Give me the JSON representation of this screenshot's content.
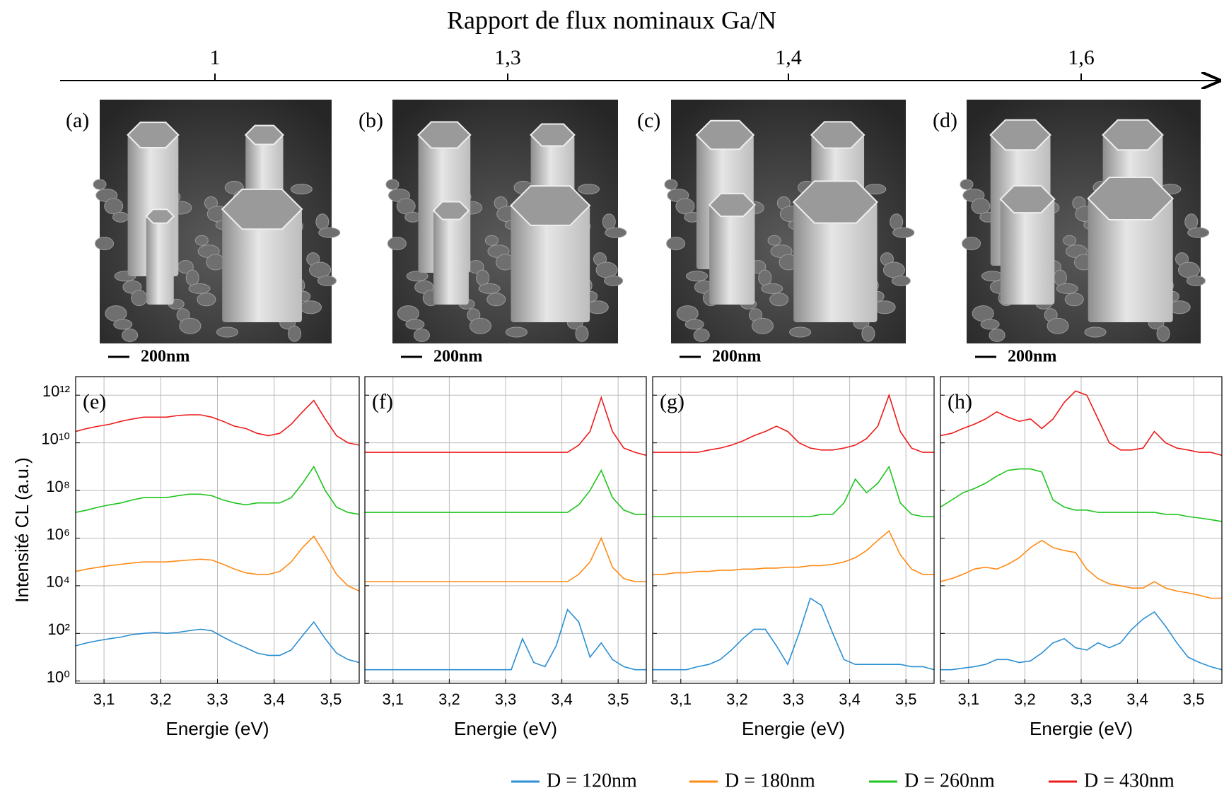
{
  "ratio_axis": {
    "title": "Rapport de flux nominaux Ga/N",
    "categories": [
      "1",
      "1,3",
      "1,4",
      "1,6"
    ]
  },
  "images": [
    {
      "label": "(a)",
      "scale_bar": "200nm"
    },
    {
      "label": "(b)",
      "scale_bar": "200nm"
    },
    {
      "label": "(c)",
      "scale_bar": "200nm"
    },
    {
      "label": "(d)",
      "scale_bar": "200nm"
    }
  ],
  "legend": [
    {
      "name": "D = 120nm",
      "color": "#2b8fd3"
    },
    {
      "name": "D = 180nm",
      "color": "#ff8a16"
    },
    {
      "name": "D = 260nm",
      "color": "#1fc41f"
    },
    {
      "name": "D = 430nm",
      "color": "#ee1b1b"
    }
  ],
  "chart_data": [
    {
      "type": "line",
      "label": "(e)",
      "xlabel": "Energie (eV)",
      "ylabel": "Intensité CL (a.u.)",
      "yscale": "log",
      "grid": true,
      "xlim": [
        3.05,
        3.55
      ],
      "xticks": [
        {
          "value": 3.1,
          "label": "3,1"
        },
        {
          "value": 3.2,
          "label": "3,2"
        },
        {
          "value": 3.3,
          "label": "3,3"
        },
        {
          "value": 3.4,
          "label": "3,4"
        },
        {
          "value": 3.5,
          "label": "3,5"
        }
      ],
      "ylim": [
        0.8,
        6000000000000.0
      ],
      "yticks": [
        {
          "value": 1,
          "label": "10⁰"
        },
        {
          "value": 100,
          "label": "10²"
        },
        {
          "value": 10000,
          "label": "10⁴"
        },
        {
          "value": 1000000,
          "label": "10⁶"
        },
        {
          "value": 100000000,
          "label": "10⁸"
        },
        {
          "value": 10000000000,
          "label": "10¹⁰"
        },
        {
          "value": 1000000000000,
          "label": "10¹²"
        }
      ],
      "x": [
        3.05,
        3.07,
        3.09,
        3.11,
        3.13,
        3.15,
        3.17,
        3.19,
        3.21,
        3.23,
        3.25,
        3.27,
        3.29,
        3.31,
        3.33,
        3.35,
        3.37,
        3.39,
        3.41,
        3.43,
        3.45,
        3.47,
        3.49,
        3.51,
        3.53,
        3.55
      ],
      "series": [
        {
          "color": "#2b8fd3",
          "values": [
            30,
            40,
            50,
            60,
            70,
            90,
            100,
            110,
            100,
            110,
            130,
            150,
            130,
            70,
            40,
            25,
            15,
            12,
            12,
            20,
            80,
            300,
            60,
            15,
            8,
            6
          ]
        },
        {
          "color": "#ff8a16",
          "values": [
            40000.0,
            50000.0,
            60000.0,
            70000.0,
            80000.0,
            90000.0,
            100000.0,
            100000.0,
            100000.0,
            110000.0,
            120000.0,
            130000.0,
            120000.0,
            80000.0,
            50000.0,
            35000.0,
            30000.0,
            30000.0,
            40000.0,
            100000.0,
            400000.0,
            1200000.0,
            200000.0,
            30000.0,
            10000.0,
            6000.0
          ]
        },
        {
          "color": "#1fc41f",
          "values": [
            12000000.0,
            15000000.0,
            20000000.0,
            25000000.0,
            30000000.0,
            40000000.0,
            50000000.0,
            50000000.0,
            50000000.0,
            60000000.0,
            70000000.0,
            70000000.0,
            60000000.0,
            40000000.0,
            30000000.0,
            25000000.0,
            30000000.0,
            30000000.0,
            30000000.0,
            50000000.0,
            200000000.0,
            1000000000.0,
            100000000.0,
            20000000.0,
            12000000.0,
            10000000.0
          ]
        },
        {
          "color": "#ee1b1b",
          "values": [
            30000000000.0,
            40000000000.0,
            50000000000.0,
            60000000000.0,
            80000000000.0,
            100000000000.0,
            120000000000.0,
            120000000000.0,
            120000000000.0,
            140000000000.0,
            150000000000.0,
            150000000000.0,
            120000000000.0,
            80000000000.0,
            50000000000.0,
            40000000000.0,
            25000000000.0,
            20000000000.0,
            25000000000.0,
            60000000000.0,
            200000000000.0,
            600000000000.0,
            100000000000.0,
            20000000000.0,
            10000000000.0,
            8000000000.0
          ]
        }
      ]
    },
    {
      "type": "line",
      "label": "(f)",
      "xlabel": "Energie (eV)",
      "yscale": "log",
      "grid": true,
      "xlim": [
        3.05,
        3.55
      ],
      "xticks": [
        {
          "value": 3.1,
          "label": "3,1"
        },
        {
          "value": 3.2,
          "label": "3,2"
        },
        {
          "value": 3.3,
          "label": "3,3"
        },
        {
          "value": 3.4,
          "label": "3,4"
        },
        {
          "value": 3.5,
          "label": "3,5"
        }
      ],
      "ylim": [
        0.8,
        6000000000000.0
      ],
      "yticks": [
        1,
        100,
        10000,
        1000000,
        100000000,
        10000000000,
        1000000000000
      ],
      "x": [
        3.05,
        3.07,
        3.09,
        3.11,
        3.13,
        3.15,
        3.17,
        3.19,
        3.21,
        3.23,
        3.25,
        3.27,
        3.29,
        3.31,
        3.33,
        3.35,
        3.37,
        3.39,
        3.41,
        3.43,
        3.45,
        3.47,
        3.49,
        3.51,
        3.53,
        3.55
      ],
      "series": [
        {
          "color": "#2b8fd3",
          "values": [
            3,
            3,
            3,
            3,
            3,
            3,
            3,
            3,
            3,
            3,
            3,
            3,
            3,
            3,
            60,
            6,
            4,
            30,
            1000,
            300,
            10,
            40,
            8,
            4,
            3,
            3
          ]
        },
        {
          "color": "#ff8a16",
          "values": [
            15000.0,
            15000.0,
            15000.0,
            15000.0,
            15000.0,
            15000.0,
            15000.0,
            15000.0,
            15000.0,
            15000.0,
            15000.0,
            15000.0,
            15000.0,
            15000.0,
            15000.0,
            15000.0,
            15000.0,
            15000.0,
            15000.0,
            30000.0,
            100000.0,
            1000000.0,
            60000.0,
            20000.0,
            15000.0,
            15000.0
          ]
        },
        {
          "color": "#1fc41f",
          "values": [
            12000000.0,
            12000000.0,
            12000000.0,
            12000000.0,
            12000000.0,
            12000000.0,
            12000000.0,
            12000000.0,
            12000000.0,
            12000000.0,
            12000000.0,
            12000000.0,
            12000000.0,
            12000000.0,
            12000000.0,
            12000000.0,
            12000000.0,
            12000000.0,
            12000000.0,
            25000000.0,
            100000000.0,
            700000000.0,
            50000000.0,
            15000000.0,
            10000000.0,
            10000000.0
          ]
        },
        {
          "color": "#ee1b1b",
          "values": [
            4000000000.0,
            4000000000.0,
            4000000000.0,
            4000000000.0,
            4000000000.0,
            4000000000.0,
            4000000000.0,
            4000000000.0,
            4000000000.0,
            4000000000.0,
            4000000000.0,
            4000000000.0,
            4000000000.0,
            4000000000.0,
            4000000000.0,
            4000000000.0,
            4000000000.0,
            4000000000.0,
            4000000000.0,
            8000000000.0,
            30000000000.0,
            800000000000.0,
            30000000000.0,
            6000000000.0,
            4000000000.0,
            3000000000.0
          ]
        }
      ]
    },
    {
      "type": "line",
      "label": "(g)",
      "xlabel": "Energie (eV)",
      "yscale": "log",
      "grid": true,
      "xlim": [
        3.05,
        3.55
      ],
      "xticks": [
        {
          "value": 3.1,
          "label": "3,1"
        },
        {
          "value": 3.2,
          "label": "3,2"
        },
        {
          "value": 3.3,
          "label": "3,3"
        },
        {
          "value": 3.4,
          "label": "3,4"
        },
        {
          "value": 3.5,
          "label": "3,5"
        }
      ],
      "ylim": [
        0.8,
        6000000000000.0
      ],
      "yticks": [
        1,
        100,
        10000,
        1000000,
        100000000,
        10000000000,
        1000000000000
      ],
      "x": [
        3.05,
        3.07,
        3.09,
        3.11,
        3.13,
        3.15,
        3.17,
        3.19,
        3.21,
        3.23,
        3.25,
        3.27,
        3.29,
        3.31,
        3.33,
        3.35,
        3.37,
        3.39,
        3.41,
        3.43,
        3.45,
        3.47,
        3.49,
        3.51,
        3.53,
        3.55
      ],
      "series": [
        {
          "color": "#2b8fd3",
          "values": [
            3,
            3,
            3,
            3,
            4,
            5,
            8,
            20,
            60,
            150,
            150,
            30,
            5,
            100,
            3000,
            1500,
            100,
            8,
            5,
            5,
            5,
            5,
            5,
            4,
            4,
            3
          ]
        },
        {
          "color": "#ff8a16",
          "values": [
            30000.0,
            30000.0,
            35000.0,
            35000.0,
            40000.0,
            40000.0,
            45000.0,
            45000.0,
            50000.0,
            50000.0,
            55000.0,
            55000.0,
            60000.0,
            60000.0,
            70000.0,
            70000.0,
            80000.0,
            100000.0,
            150000.0,
            300000.0,
            800000.0,
            2000000.0,
            200000.0,
            50000.0,
            30000.0,
            30000.0
          ]
        },
        {
          "color": "#1fc41f",
          "values": [
            8000000.0,
            8000000.0,
            8000000.0,
            8000000.0,
            8000000.0,
            8000000.0,
            8000000.0,
            8000000.0,
            8000000.0,
            8000000.0,
            8000000.0,
            8000000.0,
            8000000.0,
            8000000.0,
            8000000.0,
            10000000.0,
            10000000.0,
            30000000.0,
            300000000.0,
            80000000.0,
            200000000.0,
            1000000000.0,
            30000000.0,
            10000000.0,
            8000000.0,
            8000000.0
          ]
        },
        {
          "color": "#ee1b1b",
          "values": [
            4000000000.0,
            4000000000.0,
            4000000000.0,
            4000000000.0,
            4000000000.0,
            5000000000.0,
            6000000000.0,
            8000000000.0,
            12000000000.0,
            20000000000.0,
            30000000000.0,
            50000000000.0,
            30000000000.0,
            10000000000.0,
            6000000000.0,
            5000000000.0,
            5000000000.0,
            6000000000.0,
            8000000000.0,
            15000000000.0,
            50000000000.0,
            1000000000000.0,
            30000000000.0,
            6000000000.0,
            4000000000.0,
            4000000000.0
          ]
        }
      ]
    },
    {
      "type": "line",
      "label": "(h)",
      "xlabel": "Energie (eV)",
      "yscale": "log",
      "grid": true,
      "xlim": [
        3.05,
        3.55
      ],
      "xticks": [
        {
          "value": 3.1,
          "label": "3,1"
        },
        {
          "value": 3.2,
          "label": "3,2"
        },
        {
          "value": 3.3,
          "label": "3,3"
        },
        {
          "value": 3.4,
          "label": "3,4"
        },
        {
          "value": 3.5,
          "label": "3,5"
        }
      ],
      "ylim": [
        0.8,
        6000000000000.0
      ],
      "yticks": [
        1,
        100,
        10000,
        1000000,
        100000000,
        10000000000,
        1000000000000
      ],
      "x": [
        3.05,
        3.07,
        3.09,
        3.11,
        3.13,
        3.15,
        3.17,
        3.19,
        3.21,
        3.23,
        3.25,
        3.27,
        3.29,
        3.31,
        3.33,
        3.35,
        3.37,
        3.39,
        3.41,
        3.43,
        3.45,
        3.47,
        3.49,
        3.51,
        3.53,
        3.55
      ],
      "series": [
        {
          "color": "#2b8fd3",
          "values": [
            3,
            3,
            3.5,
            4,
            5,
            8,
            8,
            6,
            7,
            15,
            40,
            60,
            25,
            20,
            40,
            25,
            40,
            150,
            400,
            800,
            200,
            40,
            10,
            6,
            4,
            3
          ]
        },
        {
          "color": "#ff8a16",
          "values": [
            15000.0,
            20000.0,
            30000.0,
            50000.0,
            60000.0,
            50000.0,
            80000.0,
            150000.0,
            400000.0,
            800000.0,
            400000.0,
            300000.0,
            250000.0,
            50000.0,
            20000.0,
            12000.0,
            10000.0,
            8000.0,
            8000.0,
            15000.0,
            8000.0,
            6000.0,
            5000.0,
            4000.0,
            3000.0,
            3000.0
          ]
        },
        {
          "color": "#1fc41f",
          "values": [
            20000000.0,
            40000000.0,
            80000000.0,
            120000000.0,
            200000000.0,
            400000000.0,
            700000000.0,
            800000000.0,
            800000000.0,
            600000000.0,
            40000000.0,
            20000000.0,
            15000000.0,
            15000000.0,
            12000000.0,
            12000000.0,
            12000000.0,
            12000000.0,
            12000000.0,
            12000000.0,
            10000000.0,
            10000000.0,
            8000000.0,
            7000000.0,
            6000000.0,
            5000000.0
          ]
        },
        {
          "color": "#ee1b1b",
          "values": [
            20000000000.0,
            25000000000.0,
            40000000000.0,
            60000000000.0,
            100000000000.0,
            200000000000.0,
            120000000000.0,
            80000000000.0,
            100000000000.0,
            40000000000.0,
            100000000000.0,
            500000000000.0,
            1500000000000.0,
            1000000000000.0,
            100000000000.0,
            10000000000.0,
            5000000000.0,
            5000000000.0,
            6000000000.0,
            30000000000.0,
            10000000000.0,
            6000000000.0,
            5000000000.0,
            4000000000.0,
            4000000000.0,
            3000000000.0
          ]
        }
      ]
    }
  ]
}
